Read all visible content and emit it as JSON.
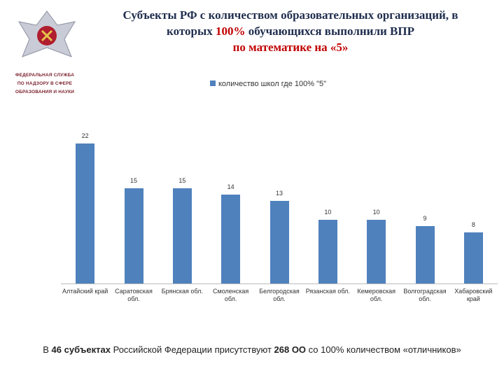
{
  "header": {
    "title_lines": [
      [
        {
          "text": "Субъекты РФ с количеством образовательных организаций, в"
        }
      ],
      [
        {
          "text": "которых "
        },
        {
          "text": "100%",
          "color": "#c00000"
        },
        {
          "text": " обучающихся выполнили ВПР"
        }
      ],
      [
        {
          "text": "по математике на «5»",
          "color": "#c00000"
        }
      ]
    ],
    "logo_lines": [
      "ФЕДЕРАЛЬНАЯ СЛУЖБА",
      "ПО НАДЗОРУ В СФЕРЕ",
      "ОБРАЗОВАНИЯ И НАУКИ"
    ]
  },
  "chart_data": {
    "type": "bar",
    "categories": [
      "Алтайский край",
      "Саратовская обл.",
      "Брянская обл.",
      "Смоленская обл.",
      "Белгородская обл.",
      "Рязанская обл.",
      "Кемеровская обл.",
      "Волгоградская обл.",
      "Хабаровский край"
    ],
    "series": [
      {
        "name": "количество школ где 100% \"5\"",
        "color": "#4f81bd",
        "values": [
          22,
          15,
          15,
          14,
          13,
          10,
          10,
          9,
          8
        ]
      }
    ],
    "ylim": [
      0,
      22
    ],
    "legend": "top"
  },
  "footer": [
    {
      "text": "В "
    },
    {
      "text": "46 субъектах",
      "bold": true
    },
    {
      "text": " Российской Федерации присутствуют "
    },
    {
      "text": "268 ОО",
      "bold": true
    },
    {
      "text": " со 100% количеством «отличников»"
    }
  ]
}
